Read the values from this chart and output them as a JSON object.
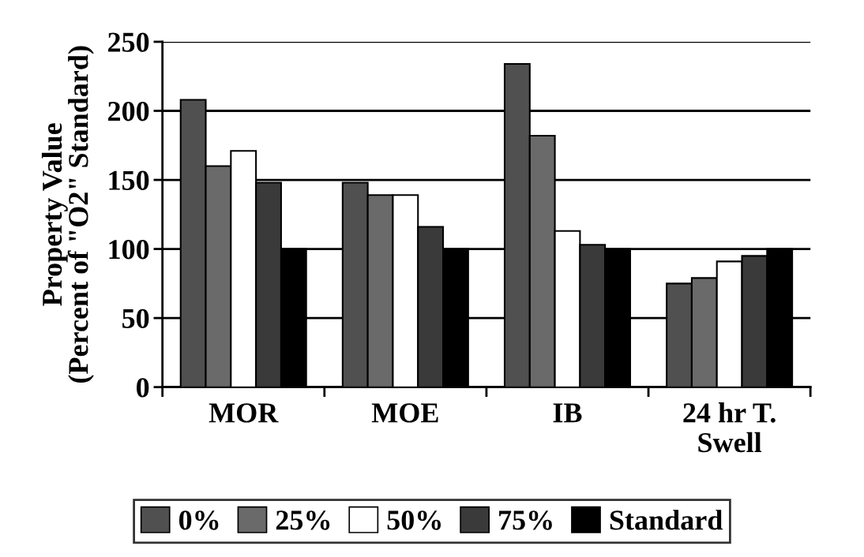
{
  "chart_data": {
    "type": "bar",
    "ylabel": "Property Value\n(Percent of \"O2\" Standard)",
    "categories": [
      "MOR",
      "MOE",
      "IB",
      "24 hr T.\nSwell"
    ],
    "series": [
      {
        "name": "0%",
        "color": "#505050",
        "values": [
          208,
          148,
          234,
          75
        ]
      },
      {
        "name": "25%",
        "color": "#6a6a6a",
        "values": [
          160,
          139,
          182,
          79
        ]
      },
      {
        "name": "50%",
        "color": "#ffffff",
        "values": [
          171,
          139,
          113,
          91
        ]
      },
      {
        "name": "75%",
        "color": "#3a3a3a",
        "values": [
          148,
          116,
          103,
          95
        ]
      },
      {
        "name": "Standard",
        "color": "#000000",
        "values": [
          100,
          100,
          100,
          100
        ]
      }
    ],
    "ylim": [
      0,
      250
    ],
    "yticks": [
      0,
      50,
      100,
      150,
      200,
      250
    ],
    "grid": "y",
    "legend": "bottom"
  }
}
